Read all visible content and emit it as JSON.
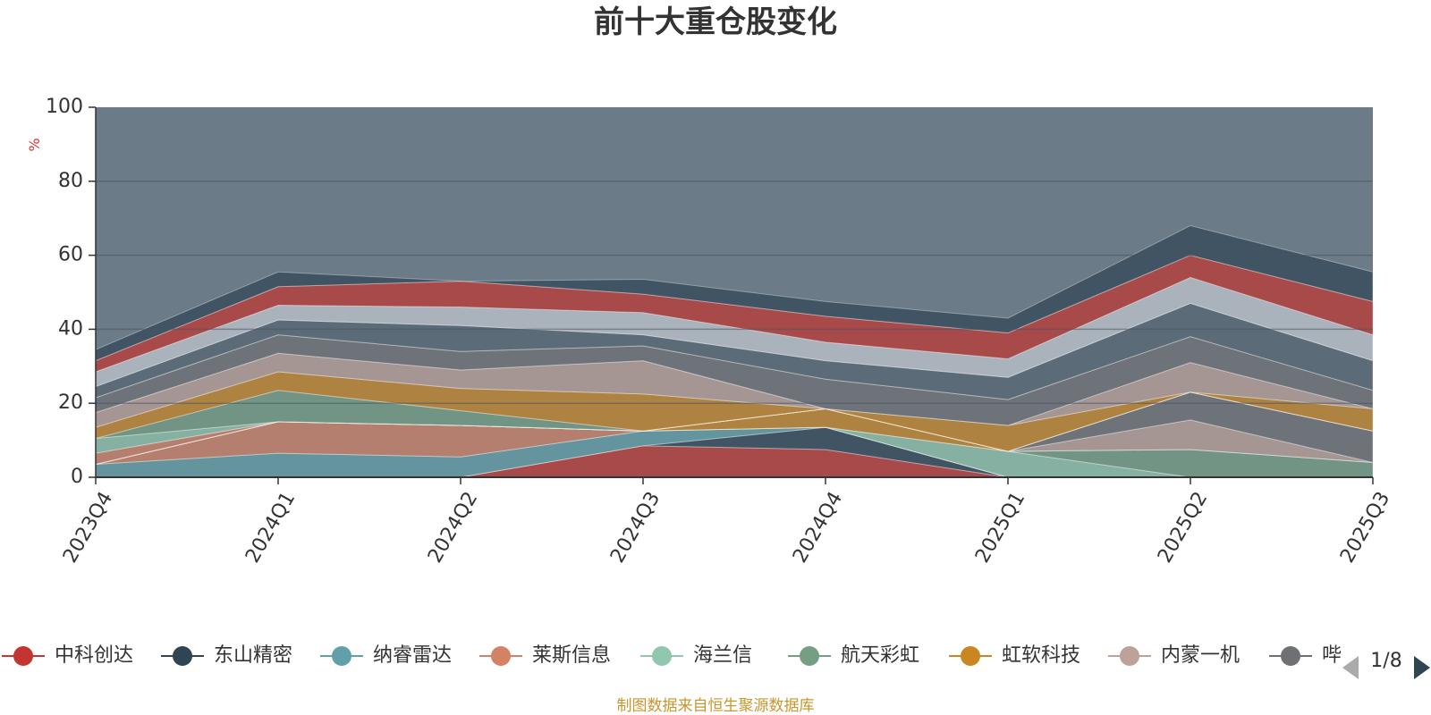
{
  "chart_data": {
    "type": "area",
    "title": "前十大重仓股变化",
    "ylabel": "%",
    "ylim": [
      0,
      100
    ],
    "yticks": [
      0,
      20,
      40,
      60,
      80,
      100
    ],
    "categories": [
      "2023Q4",
      "2024Q1",
      "2024Q2",
      "2024Q3",
      "2024Q4",
      "2025Q1",
      "2025Q2",
      "2025Q3"
    ],
    "background_color": "#6b7b87",
    "series": [
      {
        "name": "中科创达",
        "color": "#c23531",
        "values": [
          0,
          0,
          0,
          8.5,
          7.5,
          0,
          0,
          0
        ]
      },
      {
        "name": "东山精密",
        "color": "#2f4554",
        "values": [
          0,
          0,
          0,
          0,
          6,
          0,
          0,
          0
        ]
      },
      {
        "name": "纳睿雷达",
        "color": "#61a0a8",
        "values": [
          3.5,
          6.5,
          5.5,
          4,
          0,
          0,
          0,
          0
        ]
      },
      {
        "name": "莱斯信息",
        "color": "#d48265",
        "values": [
          0,
          8.5,
          8.5,
          0,
          0,
          0,
          0,
          0
        ]
      },
      {
        "name": "海兰信",
        "color": "#91c7ae",
        "values": [
          0,
          0,
          0,
          0,
          0,
          7,
          0,
          0
        ]
      },
      {
        "name": "航天彩虹",
        "color": "#749f83",
        "values": [
          0,
          0,
          0,
          0,
          0,
          0,
          7.5,
          4
        ]
      },
      {
        "name": "虹软科技",
        "color": "#ca8622",
        "values": [
          0,
          0,
          0,
          0,
          5,
          0,
          0,
          0
        ]
      },
      {
        "name": "内蒙一机",
        "color": "#bda29a",
        "values": [
          0,
          0,
          0,
          0,
          0,
          0,
          8,
          0
        ]
      },
      {
        "name": "哔哩哔哩",
        "color": "#6e7074",
        "values": [
          0,
          0,
          0,
          0,
          0,
          0,
          7.5,
          8.5
        ]
      }
    ],
    "extra_bands": [
      {
        "color": "#d48265",
        "values": [
          0,
          0,
          0,
          0,
          0,
          0,
          0,
          0
        ]
      }
    ]
  },
  "bands": [
    {
      "color": "#91c7ae",
      "values": [
        0,
        0,
        0,
        0,
        0,
        0,
        0,
        0
      ]
    }
  ],
  "legend": {
    "items": [
      {
        "label": "中科创达",
        "color": "#c23531"
      },
      {
        "label": "东山精密",
        "color": "#2f4554"
      },
      {
        "label": "纳睿雷达",
        "color": "#61a0a8"
      },
      {
        "label": "莱斯信息",
        "color": "#d48265"
      },
      {
        "label": "海兰信",
        "color": "#91c7ae"
      },
      {
        "label": "航天彩虹",
        "color": "#749f83"
      },
      {
        "label": "虹软科技",
        "color": "#ca8622"
      },
      {
        "label": "内蒙一机",
        "color": "#bda29a"
      },
      {
        "label": "哔",
        "color": "#6e7074"
      }
    ],
    "page": "1/8"
  },
  "source": "制图数据来自恒生聚源数据库"
}
